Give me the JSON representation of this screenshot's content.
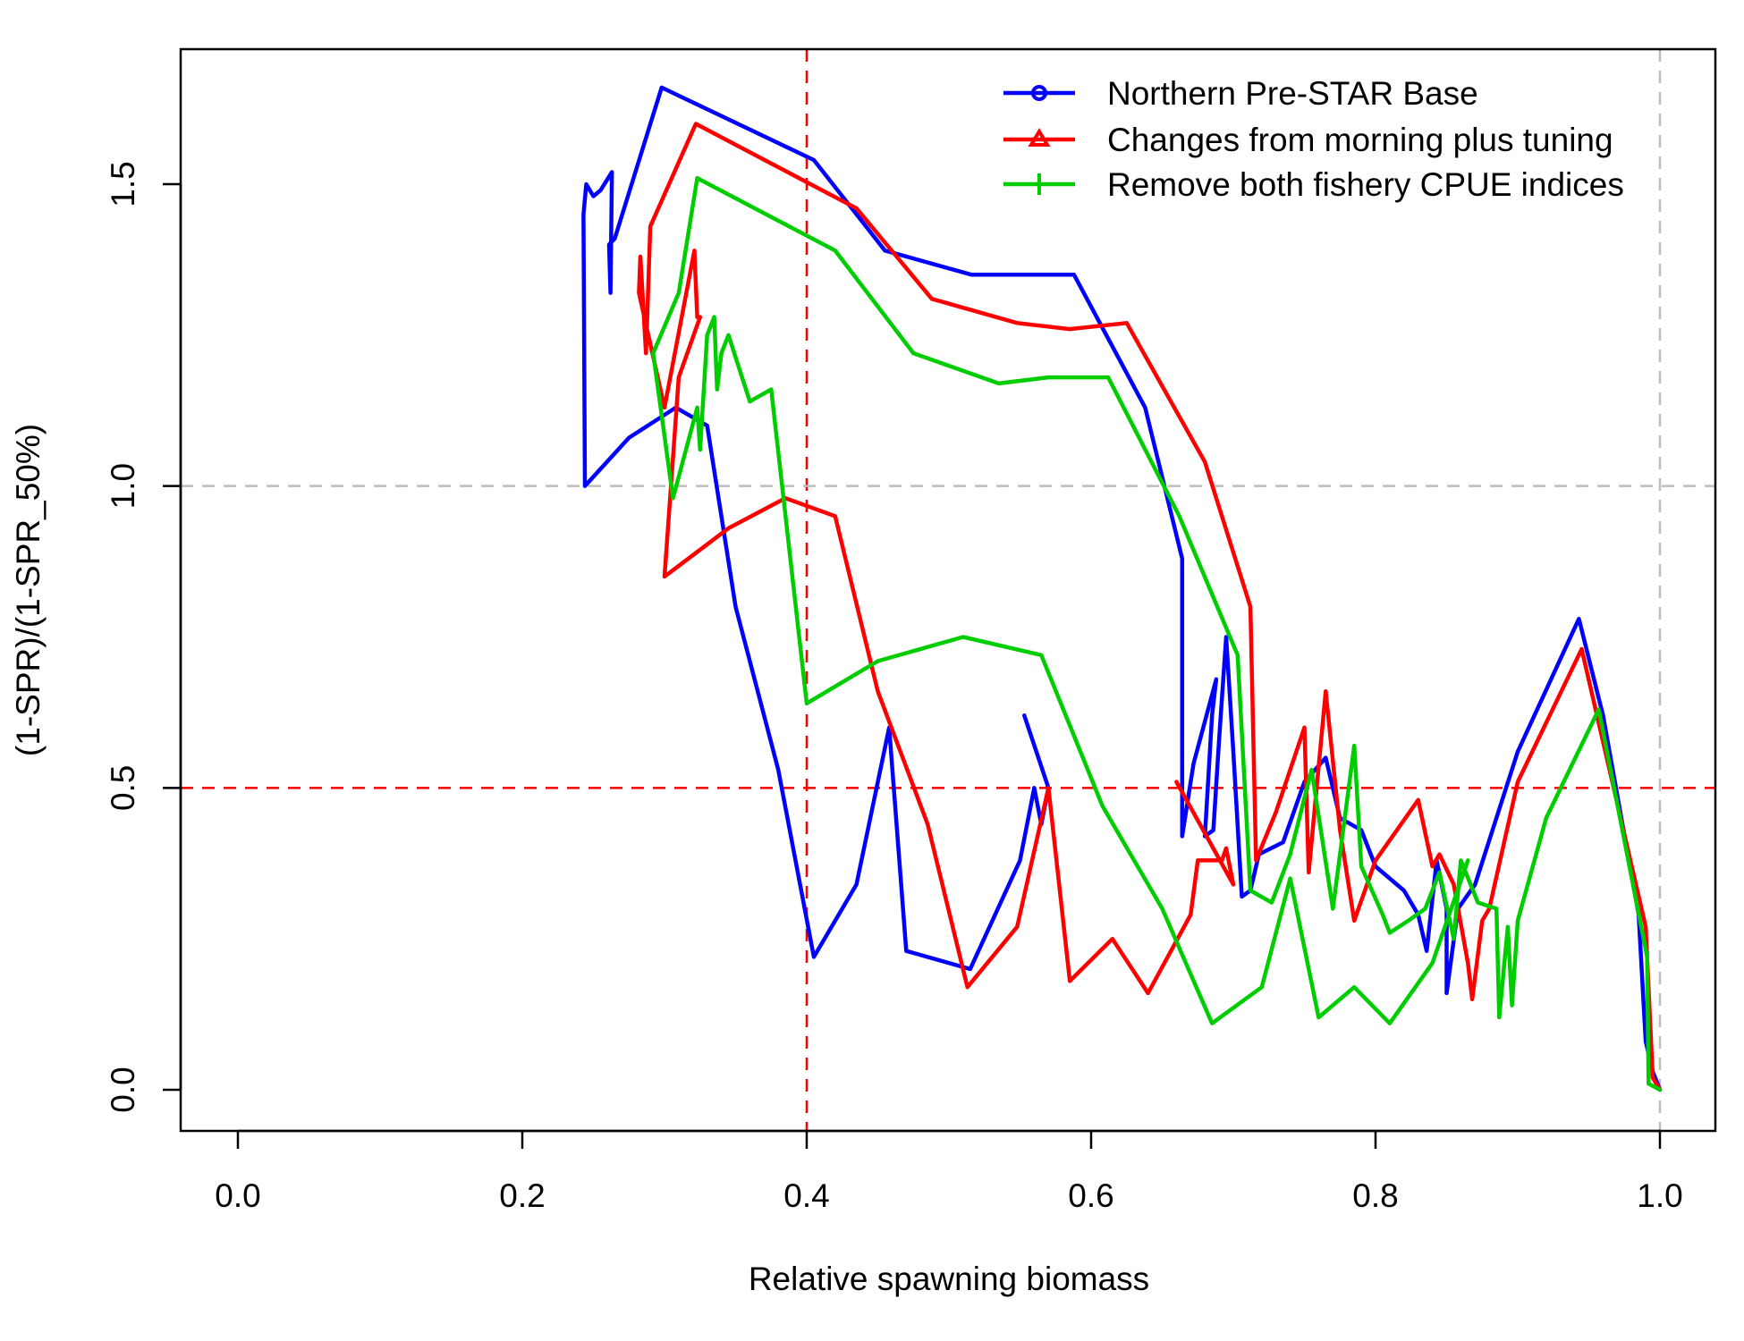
{
  "chart_data": {
    "type": "line",
    "title": "",
    "xlabel": "Relative spawning biomass",
    "ylabel": "(1-SPR)/(1-SPR_50%)",
    "xlim": [
      -0.04,
      1.04
    ],
    "ylim": [
      -0.065,
      1.72
    ],
    "x_ticks": [
      0.0,
      0.2,
      0.4,
      0.6,
      0.8,
      1.0
    ],
    "x_tick_labels": [
      "0.0",
      "0.2",
      "0.4",
      "0.6",
      "0.8",
      "1.0"
    ],
    "y_ticks": [
      0.0,
      0.5,
      1.0,
      1.5
    ],
    "y_tick_labels": [
      "0.0",
      "0.5",
      "1.0",
      "1.5"
    ],
    "grid": false,
    "legend_position": "top-right",
    "reference_lines": [
      {
        "axis": "x",
        "value": 0.4,
        "color": "#ff0000",
        "style": "dashed"
      },
      {
        "axis": "y",
        "value": 0.5,
        "color": "#ff0000",
        "style": "dashed"
      },
      {
        "axis": "y",
        "value": 1.0,
        "color": "#bebebe",
        "style": "dashed"
      },
      {
        "axis": "x",
        "value": 1.0,
        "color": "#bebebe",
        "style": "dashed"
      }
    ],
    "series": [
      {
        "name": "Northern Pre-STAR Base",
        "color": "#0000ff",
        "marker": "circle",
        "points": [
          [
            1.0,
            0.0
          ],
          [
            0.995,
            0.03
          ],
          [
            0.99,
            0.08
          ],
          [
            0.985,
            0.29
          ],
          [
            0.96,
            0.62
          ],
          [
            0.943,
            0.78
          ],
          [
            0.9,
            0.56
          ],
          [
            0.87,
            0.34
          ],
          [
            0.858,
            0.3
          ],
          [
            0.85,
            0.16
          ],
          [
            0.85,
            0.3
          ],
          [
            0.843,
            0.38
          ],
          [
            0.836,
            0.23
          ],
          [
            0.83,
            0.29
          ],
          [
            0.82,
            0.33
          ],
          [
            0.81,
            0.35
          ],
          [
            0.8,
            0.37
          ],
          [
            0.79,
            0.43
          ],
          [
            0.775,
            0.45
          ],
          [
            0.765,
            0.55
          ],
          [
            0.75,
            0.51
          ],
          [
            0.735,
            0.41
          ],
          [
            0.718,
            0.39
          ],
          [
            0.712,
            0.33
          ],
          [
            0.706,
            0.32
          ],
          [
            0.7,
            0.56
          ],
          [
            0.695,
            0.75
          ],
          [
            0.69,
            0.58
          ],
          [
            0.686,
            0.43
          ],
          [
            0.68,
            0.42
          ],
          [
            0.685,
            0.62
          ],
          [
            0.688,
            0.68
          ],
          [
            0.672,
            0.54
          ],
          [
            0.664,
            0.42
          ],
          [
            0.664,
            0.88
          ],
          [
            0.638,
            1.13
          ],
          [
            0.588,
            1.35
          ],
          [
            0.567,
            1.35
          ],
          [
            0.516,
            1.35
          ],
          [
            0.455,
            1.39
          ],
          [
            0.405,
            1.54
          ],
          [
            0.298,
            1.66
          ],
          [
            0.265,
            1.41
          ],
          [
            0.261,
            1.4
          ],
          [
            0.262,
            1.32
          ],
          [
            0.263,
            1.52
          ],
          [
            0.255,
            1.49
          ],
          [
            0.25,
            1.48
          ],
          [
            0.245,
            1.5
          ],
          [
            0.243,
            1.45
          ],
          [
            0.244,
            1.0
          ],
          [
            0.275,
            1.08
          ],
          [
            0.308,
            1.13
          ],
          [
            0.33,
            1.1
          ],
          [
            0.35,
            0.8
          ],
          [
            0.38,
            0.53
          ],
          [
            0.405,
            0.22
          ],
          [
            0.435,
            0.34
          ],
          [
            0.458,
            0.6
          ],
          [
            0.47,
            0.23
          ],
          [
            0.515,
            0.2
          ],
          [
            0.55,
            0.38
          ],
          [
            0.56,
            0.5
          ],
          [
            0.565,
            0.44
          ],
          [
            0.57,
            0.5
          ],
          [
            0.553,
            0.62
          ]
        ]
      },
      {
        "name": "Changes from morning plus tuning",
        "color": "#ff0000",
        "marker": "triangle",
        "points": [
          [
            1.0,
            0.0
          ],
          [
            0.995,
            0.02
          ],
          [
            0.99,
            0.27
          ],
          [
            0.945,
            0.73
          ],
          [
            0.9,
            0.51
          ],
          [
            0.88,
            0.3
          ],
          [
            0.875,
            0.28
          ],
          [
            0.868,
            0.15
          ],
          [
            0.865,
            0.21
          ],
          [
            0.855,
            0.34
          ],
          [
            0.845,
            0.39
          ],
          [
            0.84,
            0.37
          ],
          [
            0.83,
            0.48
          ],
          [
            0.8,
            0.38
          ],
          [
            0.785,
            0.28
          ],
          [
            0.775,
            0.43
          ],
          [
            0.765,
            0.66
          ],
          [
            0.753,
            0.36
          ],
          [
            0.75,
            0.6
          ],
          [
            0.73,
            0.46
          ],
          [
            0.716,
            0.38
          ],
          [
            0.712,
            0.8
          ],
          [
            0.68,
            1.04
          ],
          [
            0.625,
            1.27
          ],
          [
            0.585,
            1.26
          ],
          [
            0.548,
            1.27
          ],
          [
            0.488,
            1.31
          ],
          [
            0.435,
            1.46
          ],
          [
            0.322,
            1.6
          ],
          [
            0.29,
            1.43
          ],
          [
            0.287,
            1.22
          ],
          [
            0.283,
            1.38
          ],
          [
            0.282,
            1.32
          ],
          [
            0.3,
            1.13
          ],
          [
            0.321,
            1.39
          ],
          [
            0.323,
            1.28
          ],
          [
            0.325,
            1.28
          ],
          [
            0.31,
            1.18
          ],
          [
            0.3,
            0.85
          ],
          [
            0.345,
            0.93
          ],
          [
            0.385,
            0.98
          ],
          [
            0.42,
            0.95
          ],
          [
            0.45,
            0.66
          ],
          [
            0.485,
            0.44
          ],
          [
            0.513,
            0.17
          ],
          [
            0.548,
            0.27
          ],
          [
            0.57,
            0.5
          ],
          [
            0.585,
            0.18
          ],
          [
            0.615,
            0.25
          ],
          [
            0.64,
            0.16
          ],
          [
            0.67,
            0.29
          ],
          [
            0.675,
            0.38
          ],
          [
            0.692,
            0.38
          ],
          [
            0.695,
            0.4
          ],
          [
            0.7,
            0.34
          ],
          [
            0.66,
            0.51
          ]
        ]
      },
      {
        "name": "Remove both fishery CPUE indices",
        "color": "#00cd00",
        "marker": "plus",
        "points": [
          [
            1.0,
            0.0
          ],
          [
            0.992,
            0.01
          ],
          [
            0.991,
            0.22
          ],
          [
            0.957,
            0.63
          ],
          [
            0.92,
            0.45
          ],
          [
            0.9,
            0.28
          ],
          [
            0.896,
            0.14
          ],
          [
            0.893,
            0.27
          ],
          [
            0.887,
            0.12
          ],
          [
            0.885,
            0.3
          ],
          [
            0.872,
            0.31
          ],
          [
            0.86,
            0.38
          ],
          [
            0.855,
            0.25
          ],
          [
            0.845,
            0.36
          ],
          [
            0.835,
            0.3
          ],
          [
            0.823,
            0.28
          ],
          [
            0.81,
            0.26
          ],
          [
            0.805,
            0.29
          ],
          [
            0.79,
            0.37
          ],
          [
            0.785,
            0.57
          ],
          [
            0.77,
            0.3
          ],
          [
            0.755,
            0.53
          ],
          [
            0.74,
            0.39
          ],
          [
            0.727,
            0.31
          ],
          [
            0.712,
            0.33
          ],
          [
            0.703,
            0.72
          ],
          [
            0.662,
            0.95
          ],
          [
            0.612,
            1.18
          ],
          [
            0.57,
            1.18
          ],
          [
            0.535,
            1.17
          ],
          [
            0.475,
            1.22
          ],
          [
            0.42,
            1.39
          ],
          [
            0.323,
            1.51
          ],
          [
            0.31,
            1.32
          ],
          [
            0.292,
            1.22
          ],
          [
            0.306,
            0.98
          ],
          [
            0.323,
            1.13
          ],
          [
            0.325,
            1.06
          ],
          [
            0.33,
            1.25
          ],
          [
            0.335,
            1.28
          ],
          [
            0.337,
            1.16
          ],
          [
            0.34,
            1.22
          ],
          [
            0.345,
            1.25
          ],
          [
            0.36,
            1.14
          ],
          [
            0.375,
            1.16
          ],
          [
            0.4,
            0.64
          ],
          [
            0.45,
            0.71
          ],
          [
            0.51,
            0.75
          ],
          [
            0.565,
            0.72
          ],
          [
            0.608,
            0.47
          ],
          [
            0.65,
            0.3
          ],
          [
            0.685,
            0.11
          ],
          [
            0.72,
            0.17
          ],
          [
            0.74,
            0.35
          ],
          [
            0.76,
            0.12
          ],
          [
            0.785,
            0.17
          ],
          [
            0.81,
            0.11
          ],
          [
            0.84,
            0.21
          ],
          [
            0.865,
            0.38
          ]
        ]
      }
    ]
  }
}
